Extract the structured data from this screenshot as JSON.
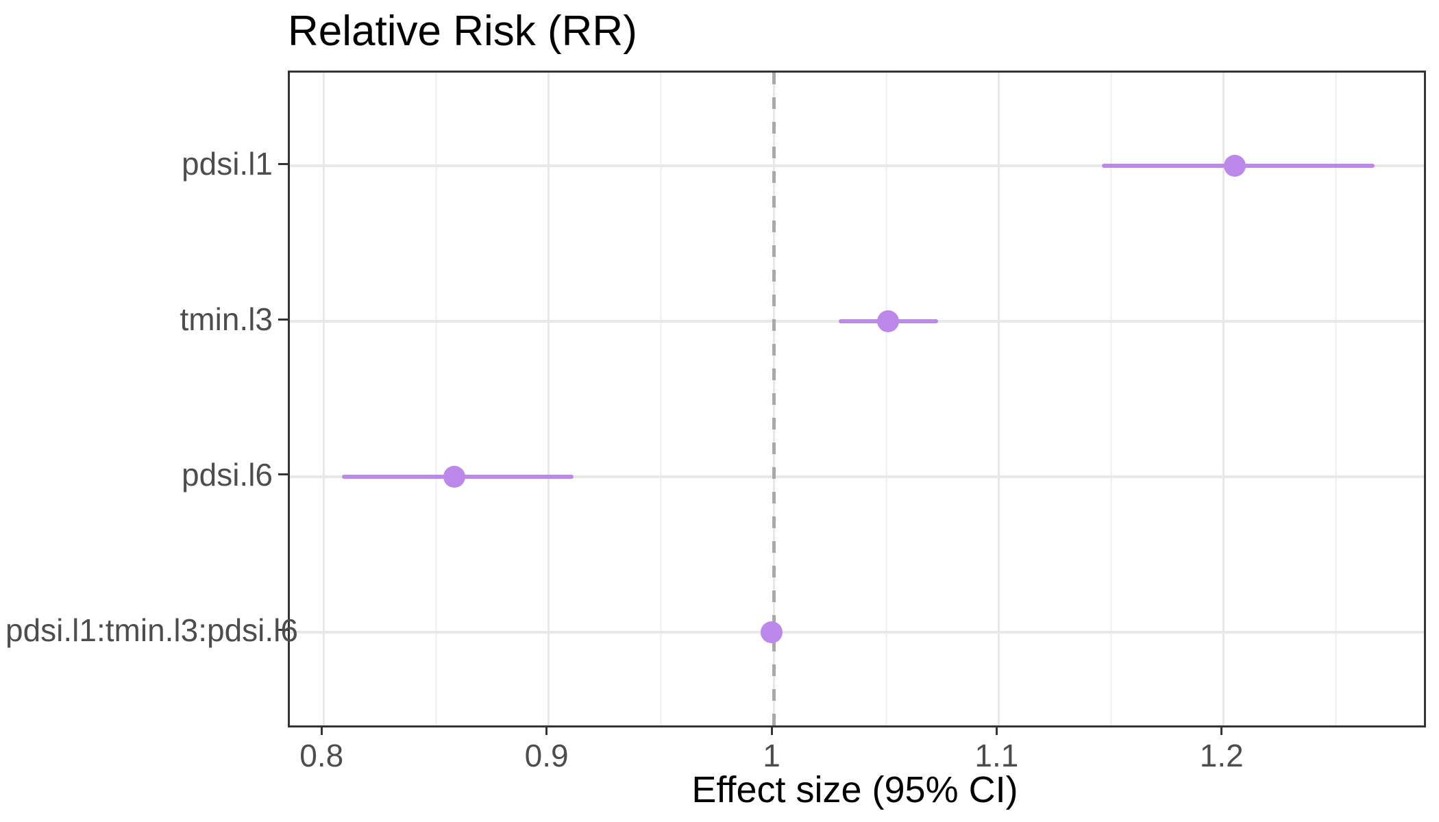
{
  "title": "Relative Risk (RR)",
  "chart_data": {
    "type": "scatter",
    "subtype": "forest-pointrange",
    "title": "Relative Risk (RR)",
    "xlabel": "Effect size (95% CI)",
    "ylabel": "",
    "xlim": [
      0.785,
      1.289
    ],
    "x_major_ticks": [
      0.8,
      0.9,
      1.0,
      1.1,
      1.2
    ],
    "x_tick_labels": [
      "0.8",
      "0.9",
      "1",
      "1.1",
      "1.2"
    ],
    "x_minor_ticks": [
      0.85,
      0.95,
      1.05,
      1.15,
      1.25
    ],
    "grid": true,
    "legend": false,
    "reference_line": {
      "x": 1.0,
      "style": "dashed"
    },
    "categories": [
      "pdsi.l1",
      "tmin.l3",
      "pdsi.l6",
      "pdsi.l1:tmin.l3:pdsi.l6"
    ],
    "points": [
      {
        "label": "pdsi.l1",
        "estimate": 1.205,
        "ci_lower": 1.146,
        "ci_upper": 1.267
      },
      {
        "label": "tmin.l3",
        "estimate": 1.051,
        "ci_lower": 1.029,
        "ci_upper": 1.073
      },
      {
        "label": "pdsi.l6",
        "estimate": 0.858,
        "ci_lower": 0.808,
        "ci_upper": 0.911
      },
      {
        "label": "pdsi.l1:tmin.l3:pdsi.l6",
        "estimate": 0.999,
        "ci_lower": 0.996,
        "ci_upper": 1.002
      }
    ],
    "colors": {
      "point": "#bc88ea",
      "ci_line": "#bc88ea",
      "reference_line": "#a8a8a8",
      "grid_major": "#e8e8e8",
      "grid_minor": "#f3f3f3",
      "panel_border": "#333333",
      "axis_text": "#4d4d4d",
      "title_text": "#000000"
    }
  }
}
